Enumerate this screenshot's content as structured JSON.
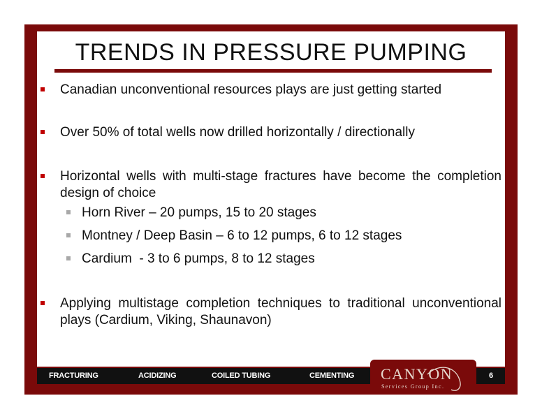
{
  "title": "TRENDS IN PRESSURE PUMPING",
  "bullets": [
    "Canadian unconventional resources plays are just getting started",
    "Over 50% of total wells now drilled horizontally / directionally",
    "Horizontal wells with multi-stage fractures have become the completion design of choice",
    "Applying multistage completion techniques to traditional unconventional plays (Cardium, Viking, Shaunavon)"
  ],
  "sub_bullets": [
    "Horn River – 20 pumps, 15 to 20 stages",
    "Montney / Deep Basin – 6 to 12 pumps, 6 to 12 stages",
    "Cardium  - 3 to 6 pumps, 8 to 12 stages"
  ],
  "footer": {
    "items": [
      "FRACTURING",
      "ACIDIZING",
      "COILED TUBING",
      "CEMENTING"
    ],
    "page_number": "6"
  },
  "logo": {
    "name": "CANYON",
    "subtitle": "Services Group Inc."
  },
  "colors": {
    "frame": "#7a0a0a",
    "bullet": "#c00000",
    "sub_bullet": "#a8a8a8",
    "footer": "#111111"
  }
}
